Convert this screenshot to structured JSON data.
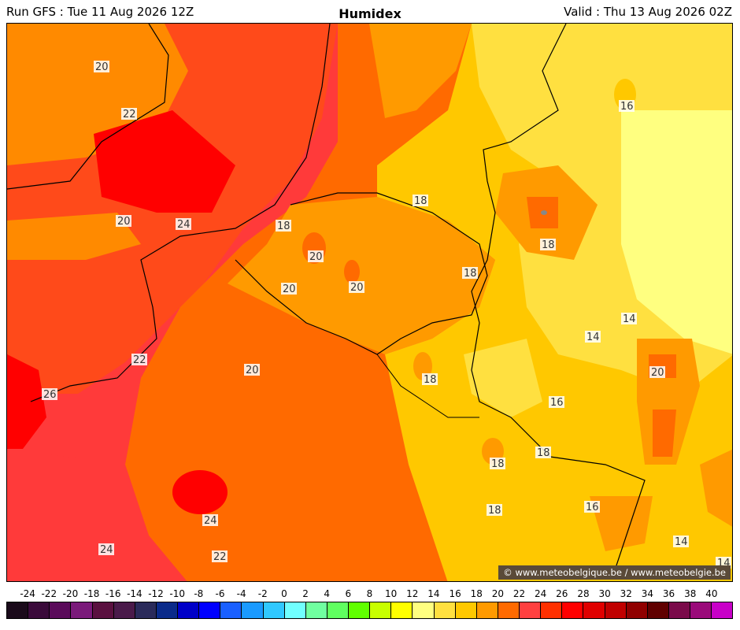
{
  "header": {
    "run": "Run GFS : Tue 11 Aug 2026 12Z",
    "title": "Humidex",
    "valid": "Valid : Thu 13 Aug 2026 02Z"
  },
  "credit": "© www.meteobelgique.be / www.meteobelgie.be",
  "contour_labels": [
    "20",
    "22",
    "24",
    "20",
    "18",
    "20",
    "20",
    "20",
    "18",
    "18",
    "18",
    "14",
    "14",
    "16",
    "16",
    "22",
    "20",
    "26",
    "18",
    "20",
    "18",
    "18",
    "16",
    "18",
    "14",
    "24",
    "22",
    "24",
    "14"
  ],
  "scale": {
    "ticks": [
      "-24",
      "-22",
      "-20",
      "-18",
      "-16",
      "-14",
      "-12",
      "-10",
      "-8",
      "-6",
      "-4",
      "-2",
      "0",
      "2",
      "4",
      "6",
      "8",
      "10",
      "12",
      "14",
      "16",
      "18",
      "20",
      "22",
      "24",
      "26",
      "28",
      "30",
      "32",
      "34",
      "36",
      "38",
      "40"
    ],
    "colors": [
      "#1a0a1a",
      "#3a0a3a",
      "#5a0a5a",
      "#7a1a7a",
      "#5a1040",
      "#4a1a4a",
      "#2a2a5a",
      "#0a2a8a",
      "#0000c8",
      "#0000ff",
      "#1a60ff",
      "#1a9aff",
      "#30c8ff",
      "#70ffff",
      "#70ffa0",
      "#60ff60",
      "#60ff00",
      "#c8ff00",
      "#ffff00",
      "#ffff80",
      "#ffe040",
      "#ffc800",
      "#ff9a00",
      "#ff6a00",
      "#ff4040",
      "#ff3000",
      "#ff0000",
      "#e00000",
      "#c00000",
      "#900000",
      "#600000",
      "#7a0a4a",
      "#9a0a7a",
      "#c800c8"
    ]
  }
}
